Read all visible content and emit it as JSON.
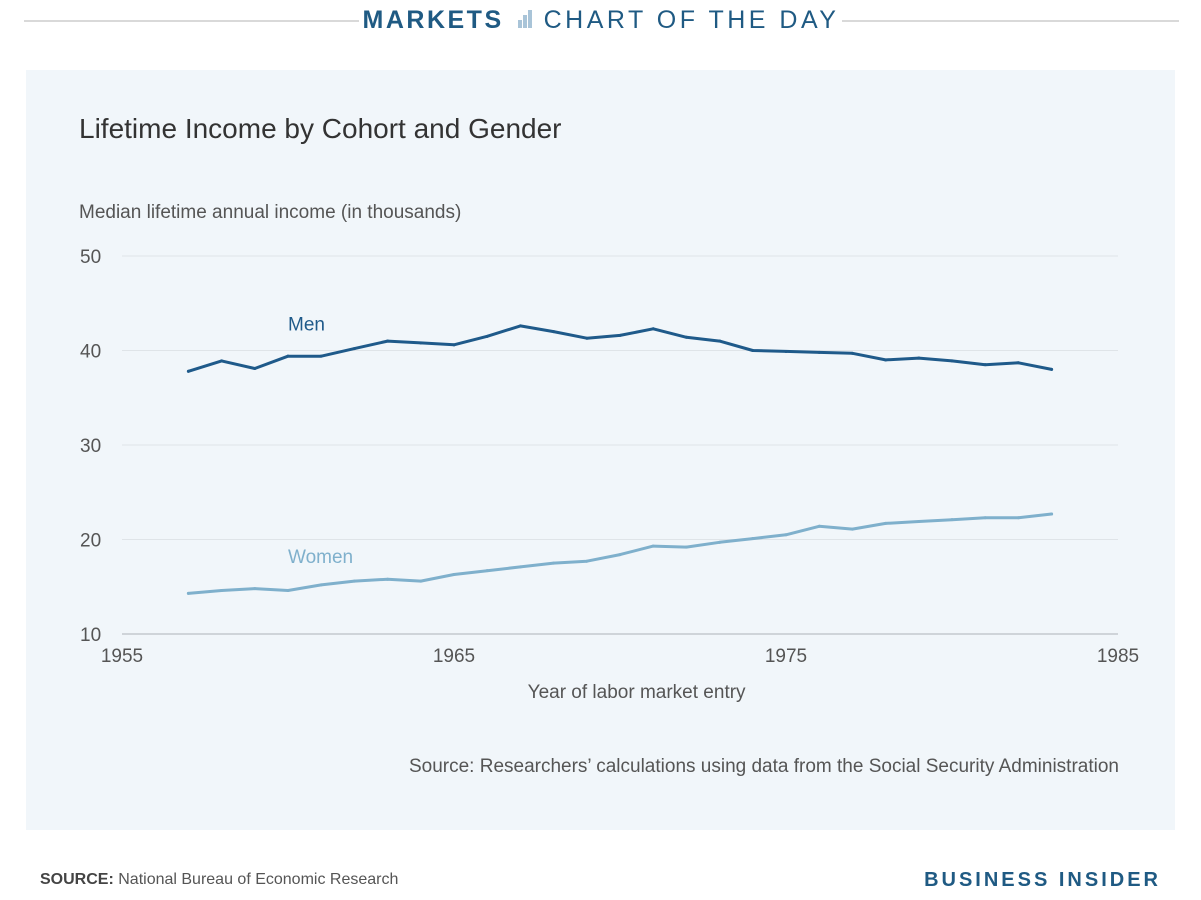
{
  "header": {
    "section": "MARKETS",
    "subtitle": "CHART OF THE DAY",
    "icon": "bar-chart-icon"
  },
  "chart_data": {
    "type": "line",
    "title": "Lifetime Income by Cohort and Gender",
    "ylabel": "Median lifetime annual income (in thousands)",
    "xlabel": "Year of labor market entry",
    "xlim": [
      1955,
      1985
    ],
    "ylim": [
      10,
      50
    ],
    "xticks": [
      1955,
      1965,
      1975,
      1985
    ],
    "yticks": [
      10,
      20,
      30,
      40,
      50
    ],
    "grid": true,
    "legend": "inline labels",
    "x": [
      1957,
      1958,
      1959,
      1960,
      1961,
      1962,
      1963,
      1964,
      1965,
      1966,
      1967,
      1968,
      1969,
      1970,
      1971,
      1972,
      1973,
      1974,
      1975,
      1976,
      1977,
      1978,
      1979,
      1980,
      1981,
      1982,
      1983
    ],
    "series": [
      {
        "name": "Men",
        "color": "#1f5a8a",
        "values": [
          37.8,
          38.9,
          38.1,
          39.4,
          39.4,
          40.2,
          41.0,
          40.8,
          40.6,
          41.5,
          42.6,
          42.0,
          41.3,
          41.6,
          42.3,
          41.4,
          41.0,
          40.0,
          39.9,
          39.8,
          39.7,
          39.0,
          39.2,
          38.9,
          38.5,
          38.7,
          38.0
        ]
      },
      {
        "name": "Women",
        "color": "#7fb0cc",
        "values": [
          14.3,
          14.6,
          14.8,
          14.6,
          15.2,
          15.6,
          15.8,
          15.6,
          16.3,
          16.7,
          17.1,
          17.5,
          17.7,
          18.4,
          19.3,
          19.2,
          19.7,
          20.1,
          20.5,
          21.4,
          21.1,
          21.7,
          21.9,
          22.1,
          22.3,
          22.3,
          22.7
        ]
      }
    ],
    "source_note": "Source: Researchers’ calculations using data from the Social Security Administration"
  },
  "footer": {
    "source_label": "SOURCE:",
    "source_text": "National Bureau of Economic Research",
    "brand": "BUSINESS INSIDER"
  }
}
